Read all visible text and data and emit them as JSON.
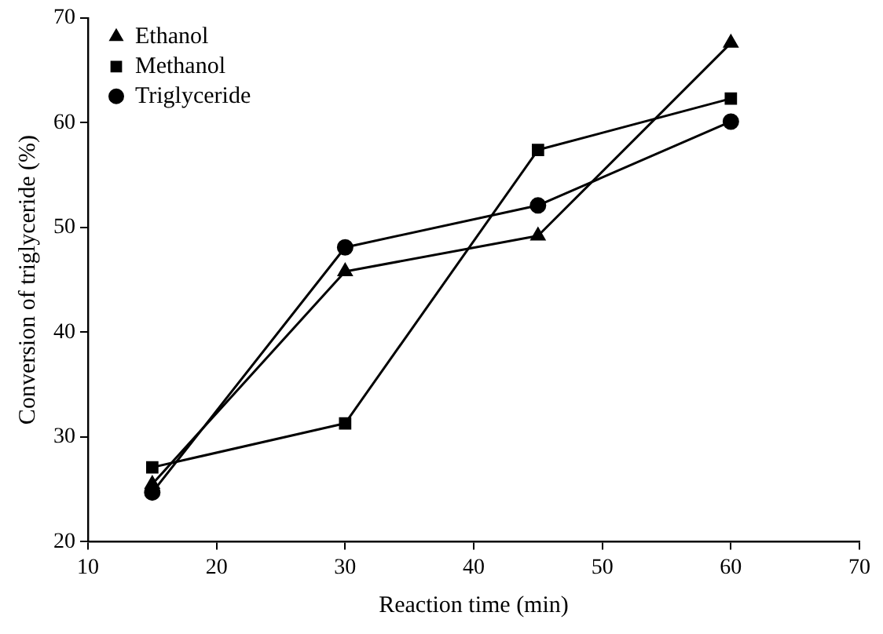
{
  "chart_data": {
    "type": "line",
    "xlabel": "Reaction time (min)",
    "ylabel": "Conversion of triglyceride (%)",
    "x": [
      15,
      30,
      45,
      60
    ],
    "series": [
      {
        "name": "Ethanol",
        "color": "#000000",
        "marker": "triangle",
        "values": [
          25.5,
          45.8,
          49.2,
          67.6
        ]
      },
      {
        "name": "Methanol",
        "color": "#000000",
        "marker": "square",
        "values": [
          27.1,
          31.3,
          57.4,
          62.3
        ]
      },
      {
        "name": "Triglyceride",
        "color": "#000000",
        "marker": "circle",
        "values": [
          24.7,
          48.1,
          52.1,
          60.1
        ]
      }
    ],
    "xlim": [
      10,
      70
    ],
    "xticks": [
      10,
      20,
      30,
      40,
      50,
      60,
      70
    ],
    "ylim": [
      20,
      70
    ],
    "yticks": [
      20,
      30,
      40,
      50,
      60,
      70
    ],
    "grid": false,
    "legend": "top left",
    "line_style": "solid"
  }
}
